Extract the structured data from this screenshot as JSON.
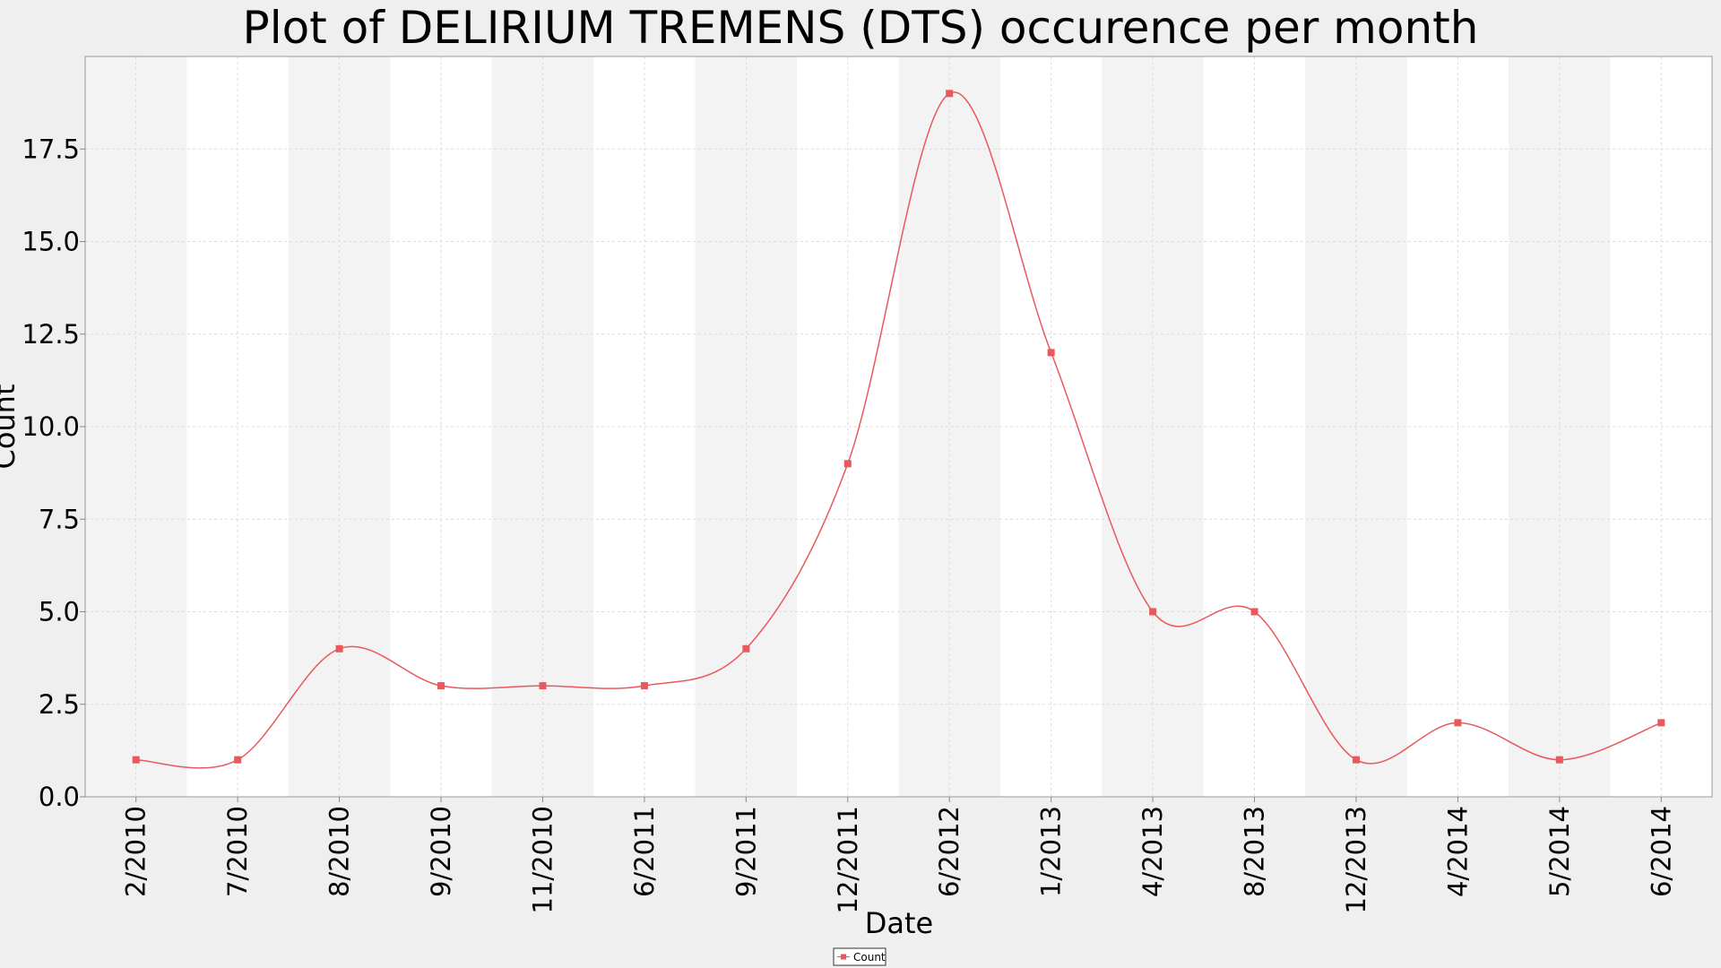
{
  "chart_data": {
    "type": "line",
    "title": "Plot of DELIRIUM TREMENS (DTS) occurence per month",
    "xlabel": "Date",
    "ylabel": "Count",
    "categories": [
      "2/2010",
      "7/2010",
      "8/2010",
      "9/2010",
      "11/2010",
      "6/2011",
      "9/2011",
      "12/2011",
      "6/2012",
      "1/2013",
      "4/2013",
      "8/2013",
      "12/2013",
      "4/2014",
      "5/2014",
      "6/2014"
    ],
    "series": [
      {
        "name": "Count",
        "values": [
          1,
          1,
          4,
          3,
          3,
          3,
          4,
          9,
          19,
          12,
          5,
          5,
          1,
          2,
          1,
          2
        ]
      }
    ],
    "ylim": [
      0,
      20
    ],
    "yticks": [
      "0.0",
      "2.5",
      "5.0",
      "7.5",
      "10.0",
      "12.5",
      "15.0",
      "17.5"
    ],
    "ytick_values": [
      0,
      2.5,
      5,
      7.5,
      10,
      12.5,
      15,
      17.5
    ],
    "grid": true,
    "legend_position": "bottom-center",
    "series_color": "#e8585c",
    "band_color": "#f3f3f3",
    "plot_background": "#ffffff",
    "page_background": "#efefef"
  }
}
